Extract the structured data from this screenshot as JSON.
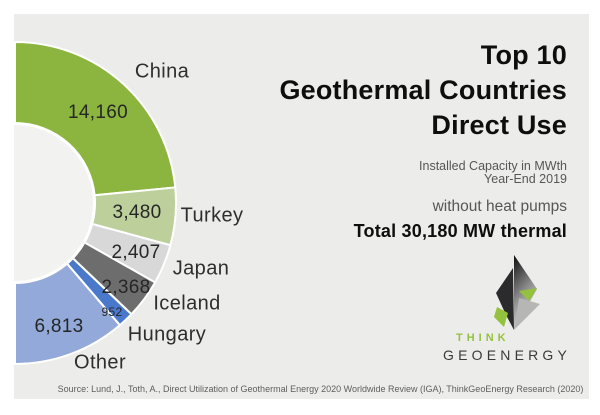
{
  "title": {
    "line1": "Top 10",
    "line2": "Geothermal Countries",
    "line3": "Direct Use"
  },
  "subtitle": {
    "line1": "Installed Capacity in MWth",
    "line2": "Year-End 2019",
    "note": "without heat pumps",
    "total": "Total 30,180 MW thermal"
  },
  "logo": {
    "think": "THINK",
    "geoenergy": "GEOENERGY"
  },
  "source_text": "Source: Lund, J., Toth, A., Direct Utilization of Geothermal Energy 2020 Worldwide Review (IGA), ThinkGeoEnergy Research (2020)",
  "colors": {
    "card_bg": "#ECECEB",
    "hole_bg": "#F2F2F1",
    "separator": "#FFFFFF",
    "accent_green": "#8CB540",
    "logo_green": "#94C13E",
    "text_dark": "#0E0E0E",
    "text_gray": "#565656"
  },
  "chart_data": {
    "type": "pie",
    "variant": "half-donut",
    "title": "Top 10 Geothermal Countries Direct Use",
    "unit": "MWth",
    "period": "Year-End 2019",
    "note": "without heat pumps",
    "total": 30180,
    "total_label": "Total 30,180 MW thermal",
    "start_angle_deg": 0,
    "end_angle_deg": 180,
    "inner_radius_ratio": 0.5,
    "legend_position": "outside-labels",
    "slices": [
      {
        "label": "China",
        "value": 14160,
        "value_label": "14,160",
        "color": "#8CB540"
      },
      {
        "label": "Turkey",
        "value": 3480,
        "value_label": "3,480",
        "color": "#BDD09B"
      },
      {
        "label": "Japan",
        "value": 2407,
        "value_label": "2,407",
        "color": "#D8D8D8"
      },
      {
        "label": "Iceland",
        "value": 2368,
        "value_label": "2,368",
        "color": "#6D6D6D"
      },
      {
        "label": "Hungary",
        "value": 952,
        "value_label": "952",
        "color": "#4A78CB"
      },
      {
        "label": "Other",
        "value": 6813,
        "value_label": "6,813",
        "color": "#92A9DA"
      }
    ]
  }
}
